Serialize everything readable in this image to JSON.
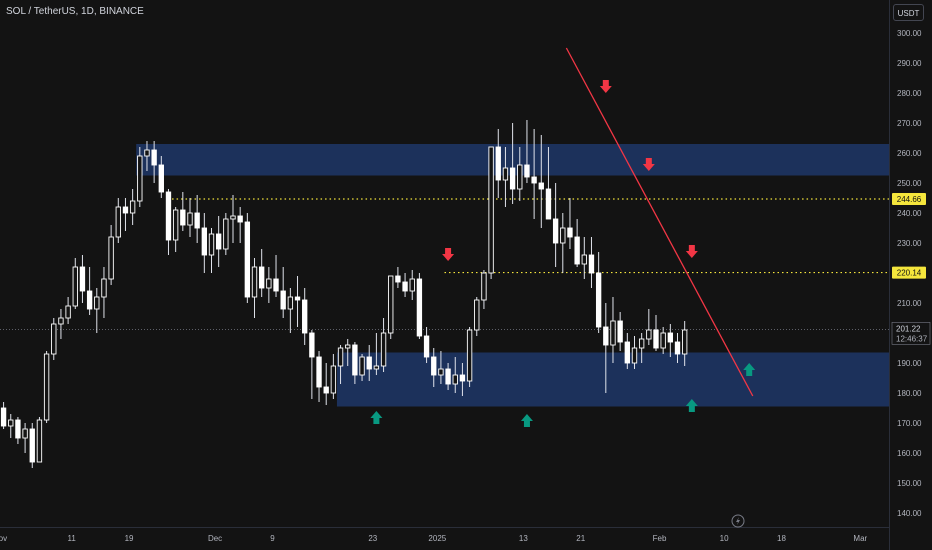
{
  "header": {
    "title": "SOL / TetherUS, 1D, BINANCE",
    "currency_button": "USDT"
  },
  "colors": {
    "background": "#131313",
    "up": "#ffffff",
    "down": "#ffffff",
    "zone": "#1e3768",
    "trend": "#f23645",
    "level": "#f5e63c",
    "arrow_down": "#f23645",
    "arrow_up": "#089981"
  },
  "chart_data": {
    "type": "candlestick",
    "title": "SOL / TetherUS, 1D, BINANCE",
    "unit": "USDT",
    "ylim": [
      135,
      305
    ],
    "y_ticks": [
      "140.00",
      "150.00",
      "160.00",
      "170.00",
      "180.00",
      "190.00",
      "200.00",
      "210.00",
      "220.00",
      "230.00",
      "240.00",
      "250.00",
      "260.00",
      "270.00",
      "280.00",
      "290.00",
      "300.00"
    ],
    "x_ticks": [
      "Nov",
      "11",
      "19",
      "Dec",
      "9",
      "23",
      "2025",
      "13",
      "21",
      "Feb",
      "10",
      "18",
      "Mar"
    ],
    "start": "2024-11-01",
    "x_end": "2025-03-05",
    "ohlc": [
      [
        175,
        177,
        168,
        169
      ],
      [
        169,
        173,
        165,
        171
      ],
      [
        171,
        172,
        163,
        165
      ],
      [
        165,
        170,
        160,
        168
      ],
      [
        168,
        170,
        155,
        157
      ],
      [
        157,
        172,
        157,
        171
      ],
      [
        171,
        194,
        170,
        193
      ],
      [
        193,
        205,
        191,
        203
      ],
      [
        203,
        208,
        198,
        205
      ],
      [
        205,
        212,
        203,
        209
      ],
      [
        209,
        225,
        208,
        222
      ],
      [
        222,
        226,
        210,
        214
      ],
      [
        214,
        222,
        206,
        208
      ],
      [
        208,
        215,
        200,
        212
      ],
      [
        212,
        222,
        205,
        218
      ],
      [
        218,
        236,
        216,
        232
      ],
      [
        232,
        245,
        230,
        242
      ],
      [
        242,
        245,
        234,
        240
      ],
      [
        240,
        248,
        236,
        244
      ],
      [
        244,
        262,
        242,
        259
      ],
      [
        259,
        264,
        254,
        261
      ],
      [
        261,
        264,
        250,
        256
      ],
      [
        256,
        259,
        245,
        247
      ],
      [
        247,
        248,
        226,
        231
      ],
      [
        231,
        242,
        227,
        241
      ],
      [
        241,
        247,
        234,
        236
      ],
      [
        236,
        245,
        232,
        240
      ],
      [
        240,
        246,
        230,
        235
      ],
      [
        235,
        240,
        220,
        226
      ],
      [
        226,
        235,
        220,
        233
      ],
      [
        233,
        239,
        222,
        228
      ],
      [
        228,
        240,
        226,
        238
      ],
      [
        238,
        246,
        230,
        239
      ],
      [
        239,
        242,
        230,
        237
      ],
      [
        237,
        240,
        210,
        212
      ],
      [
        212,
        225,
        205,
        222
      ],
      [
        222,
        228,
        212,
        215
      ],
      [
        215,
        222,
        210,
        218
      ],
      [
        218,
        226,
        212,
        214
      ],
      [
        214,
        222,
        205,
        208
      ],
      [
        208,
        215,
        200,
        212
      ],
      [
        212,
        219,
        202,
        211
      ],
      [
        211,
        215,
        196,
        200
      ],
      [
        200,
        201,
        178,
        192
      ],
      [
        192,
        194,
        177,
        182
      ],
      [
        182,
        190,
        176,
        180
      ],
      [
        180,
        193,
        178,
        189
      ],
      [
        189,
        196,
        183,
        195
      ],
      [
        195,
        198,
        189,
        196
      ],
      [
        196,
        197,
        183,
        186
      ],
      [
        186,
        193,
        184,
        192
      ],
      [
        192,
        196,
        184,
        188
      ],
      [
        188,
        200,
        186,
        189
      ],
      [
        189,
        205,
        187,
        200
      ],
      [
        200,
        219,
        198,
        219
      ],
      [
        219,
        222,
        215,
        217
      ],
      [
        217,
        220,
        212,
        214
      ],
      [
        214,
        221,
        211,
        218
      ],
      [
        218,
        220,
        198,
        199
      ],
      [
        199,
        202,
        190,
        192
      ],
      [
        192,
        195,
        182,
        186
      ],
      [
        186,
        194,
        183,
        188
      ],
      [
        188,
        190,
        181,
        183
      ],
      [
        183,
        192,
        180,
        186
      ],
      [
        186,
        190,
        179,
        184
      ],
      [
        184,
        202,
        182,
        201
      ],
      [
        201,
        212,
        199,
        211
      ],
      [
        211,
        221,
        208,
        220
      ],
      [
        220,
        262,
        218,
        262
      ],
      [
        262,
        268,
        245,
        251
      ],
      [
        251,
        262,
        242,
        255
      ],
      [
        255,
        270,
        243,
        248
      ],
      [
        248,
        262,
        244,
        256
      ],
      [
        256,
        271,
        250,
        252
      ],
      [
        252,
        268,
        238,
        250
      ],
      [
        250,
        266,
        235,
        248
      ],
      [
        248,
        262,
        238,
        238
      ],
      [
        238,
        250,
        222,
        230
      ],
      [
        230,
        240,
        220,
        235
      ],
      [
        235,
        245,
        228,
        232
      ],
      [
        232,
        238,
        222,
        223
      ],
      [
        223,
        232,
        218,
        226
      ],
      [
        226,
        232,
        215,
        220
      ],
      [
        220,
        227,
        200,
        202
      ],
      [
        202,
        210,
        180,
        196
      ],
      [
        196,
        212,
        190,
        204
      ],
      [
        204,
        207,
        194,
        197
      ],
      [
        197,
        200,
        188,
        190
      ],
      [
        190,
        199,
        188,
        195
      ],
      [
        195,
        200,
        190,
        198
      ],
      [
        198,
        208,
        196,
        201
      ],
      [
        201,
        206,
        194,
        195
      ],
      [
        195,
        202,
        193,
        200
      ],
      [
        200,
        203,
        192,
        197
      ],
      [
        197,
        200,
        190,
        193
      ],
      [
        193,
        204,
        189,
        201
      ]
    ],
    "zones": [
      {
        "low": 252.5,
        "high": 263
      },
      {
        "low": 175.5,
        "high": 193.5
      }
    ],
    "levels": [
      {
        "label": "244.66",
        "value": 244.66
      },
      {
        "label": "220.14",
        "value": 220.14
      }
    ],
    "trendline": {
      "from": {
        "date": "2025-01-19",
        "value": 295
      },
      "to": {
        "date": "2025-02-14",
        "value": 179
      }
    },
    "arrows": [
      {
        "dir": "down",
        "date": "2025-01-02",
        "value": 226
      },
      {
        "dir": "down",
        "date": "2025-01-24",
        "value": 282
      },
      {
        "dir": "down",
        "date": "2025-01-30",
        "value": 256
      },
      {
        "dir": "down",
        "date": "2025-02-05",
        "value": 227
      },
      {
        "dir": "up",
        "date": "2024-12-23",
        "value": 172
      },
      {
        "dir": "up",
        "date": "2025-01-13",
        "value": 171
      },
      {
        "dir": "up",
        "date": "2025-02-05",
        "value": 176
      },
      {
        "dir": "up",
        "date": "2025-02-13",
        "value": 188
      }
    ],
    "last_price": {
      "label": "201.22",
      "value": 201.22,
      "countdown": "12:46:37"
    }
  }
}
